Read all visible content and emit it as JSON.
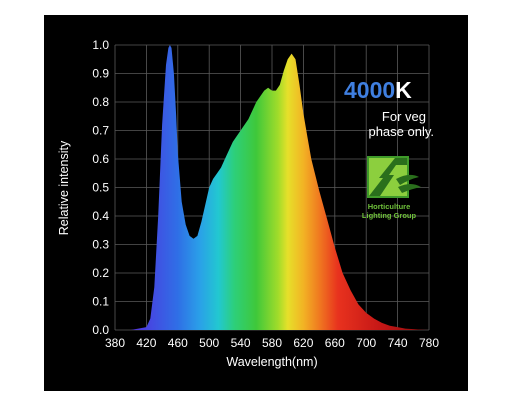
{
  "chart_data": {
    "type": "area",
    "title": "",
    "xlabel": "Wavelength(nm)",
    "ylabel": "Relative intensity",
    "xlim": [
      380,
      780
    ],
    "ylim": [
      0,
      1.0
    ],
    "x_ticks": [
      "380",
      "420",
      "460",
      "500",
      "540",
      "580",
      "620",
      "660",
      "700",
      "740",
      "780"
    ],
    "y_ticks": [
      "0.0",
      "0.1",
      "0.2",
      "0.3",
      "0.4",
      "0.5",
      "0.6",
      "0.7",
      "0.8",
      "0.9",
      "1.0"
    ],
    "grid": true,
    "series": [
      {
        "x": [
          380,
          400,
          420,
          425,
          430,
          435,
          440,
          445,
          448,
          450,
          452,
          455,
          458,
          460,
          465,
          470,
          475,
          480,
          485,
          490,
          495,
          500,
          505,
          510,
          515,
          520,
          530,
          540,
          550,
          560,
          570,
          575,
          580,
          585,
          590,
          595,
          600,
          605,
          610,
          615,
          620,
          625,
          630,
          640,
          650,
          660,
          670,
          680,
          690,
          700,
          710,
          720,
          730,
          740,
          750,
          760,
          770,
          780
        ],
        "y": [
          0.0,
          0.0,
          0.01,
          0.04,
          0.15,
          0.4,
          0.72,
          0.93,
          0.99,
          1.0,
          0.99,
          0.9,
          0.75,
          0.62,
          0.45,
          0.37,
          0.33,
          0.32,
          0.33,
          0.38,
          0.44,
          0.5,
          0.53,
          0.55,
          0.57,
          0.6,
          0.66,
          0.7,
          0.74,
          0.8,
          0.84,
          0.85,
          0.84,
          0.84,
          0.86,
          0.91,
          0.95,
          0.97,
          0.95,
          0.86,
          0.76,
          0.68,
          0.6,
          0.49,
          0.39,
          0.29,
          0.2,
          0.14,
          0.09,
          0.06,
          0.04,
          0.025,
          0.015,
          0.01,
          0.005,
          0.003,
          0.001,
          0.0
        ]
      }
    ]
  },
  "labels": {
    "cct_value": "4000",
    "cct_unit": "K",
    "note_line1": "For veg",
    "note_line2": "phase only.",
    "logo_line1": "Horticulture",
    "logo_line2": "Lighting Group"
  },
  "colors": {
    "background": "#000000",
    "grid": "#5a5a5a",
    "text": "#ffffff",
    "cct_accent": "#3f7fe0",
    "logo_green": "#6fc13a"
  }
}
